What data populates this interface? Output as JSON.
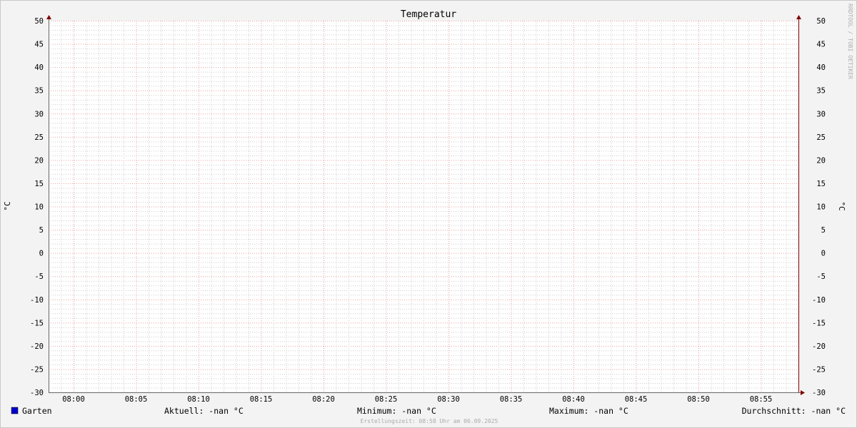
{
  "chart_data": {
    "type": "line",
    "title": "Temperatur",
    "ylabel": "°C",
    "ylabel_right": "°C",
    "ylim": [
      -30,
      50
    ],
    "y_major_step": 5,
    "y_minor_step": 1,
    "y_ticks": [
      50,
      45,
      40,
      35,
      30,
      25,
      20,
      15,
      10,
      5,
      0,
      -5,
      -10,
      -15,
      -20,
      -25,
      -30
    ],
    "xlim": [
      "07:58",
      "08:58"
    ],
    "x_ticks": [
      "08:00",
      "08:05",
      "08:10",
      "08:15",
      "08:20",
      "08:25",
      "08:30",
      "08:35",
      "08:40",
      "08:45",
      "08:50",
      "08:55"
    ],
    "x_minor_step_minutes": 1,
    "grid": true,
    "series": [
      {
        "name": "Garten",
        "color": "#0000cc",
        "values": []
      }
    ],
    "legend": {
      "series_label": "Garten",
      "current": "Aktuell: -nan °C",
      "minimum": "Minimum: -nan °C",
      "maximum": "Maximum: -nan °C",
      "average": "Durchschnitt: -nan °C"
    },
    "footer": "Erstellungszeit: 08:58 Uhr am 06.09.2025",
    "watermark": "RRDTOOL / TOBI OETIKER",
    "colors": {
      "major_grid": "#e8a0a0",
      "minor_grid": "#cccccc",
      "axis": "#800000",
      "canvas": "#ffffff",
      "background": "#f3f3f3"
    }
  }
}
